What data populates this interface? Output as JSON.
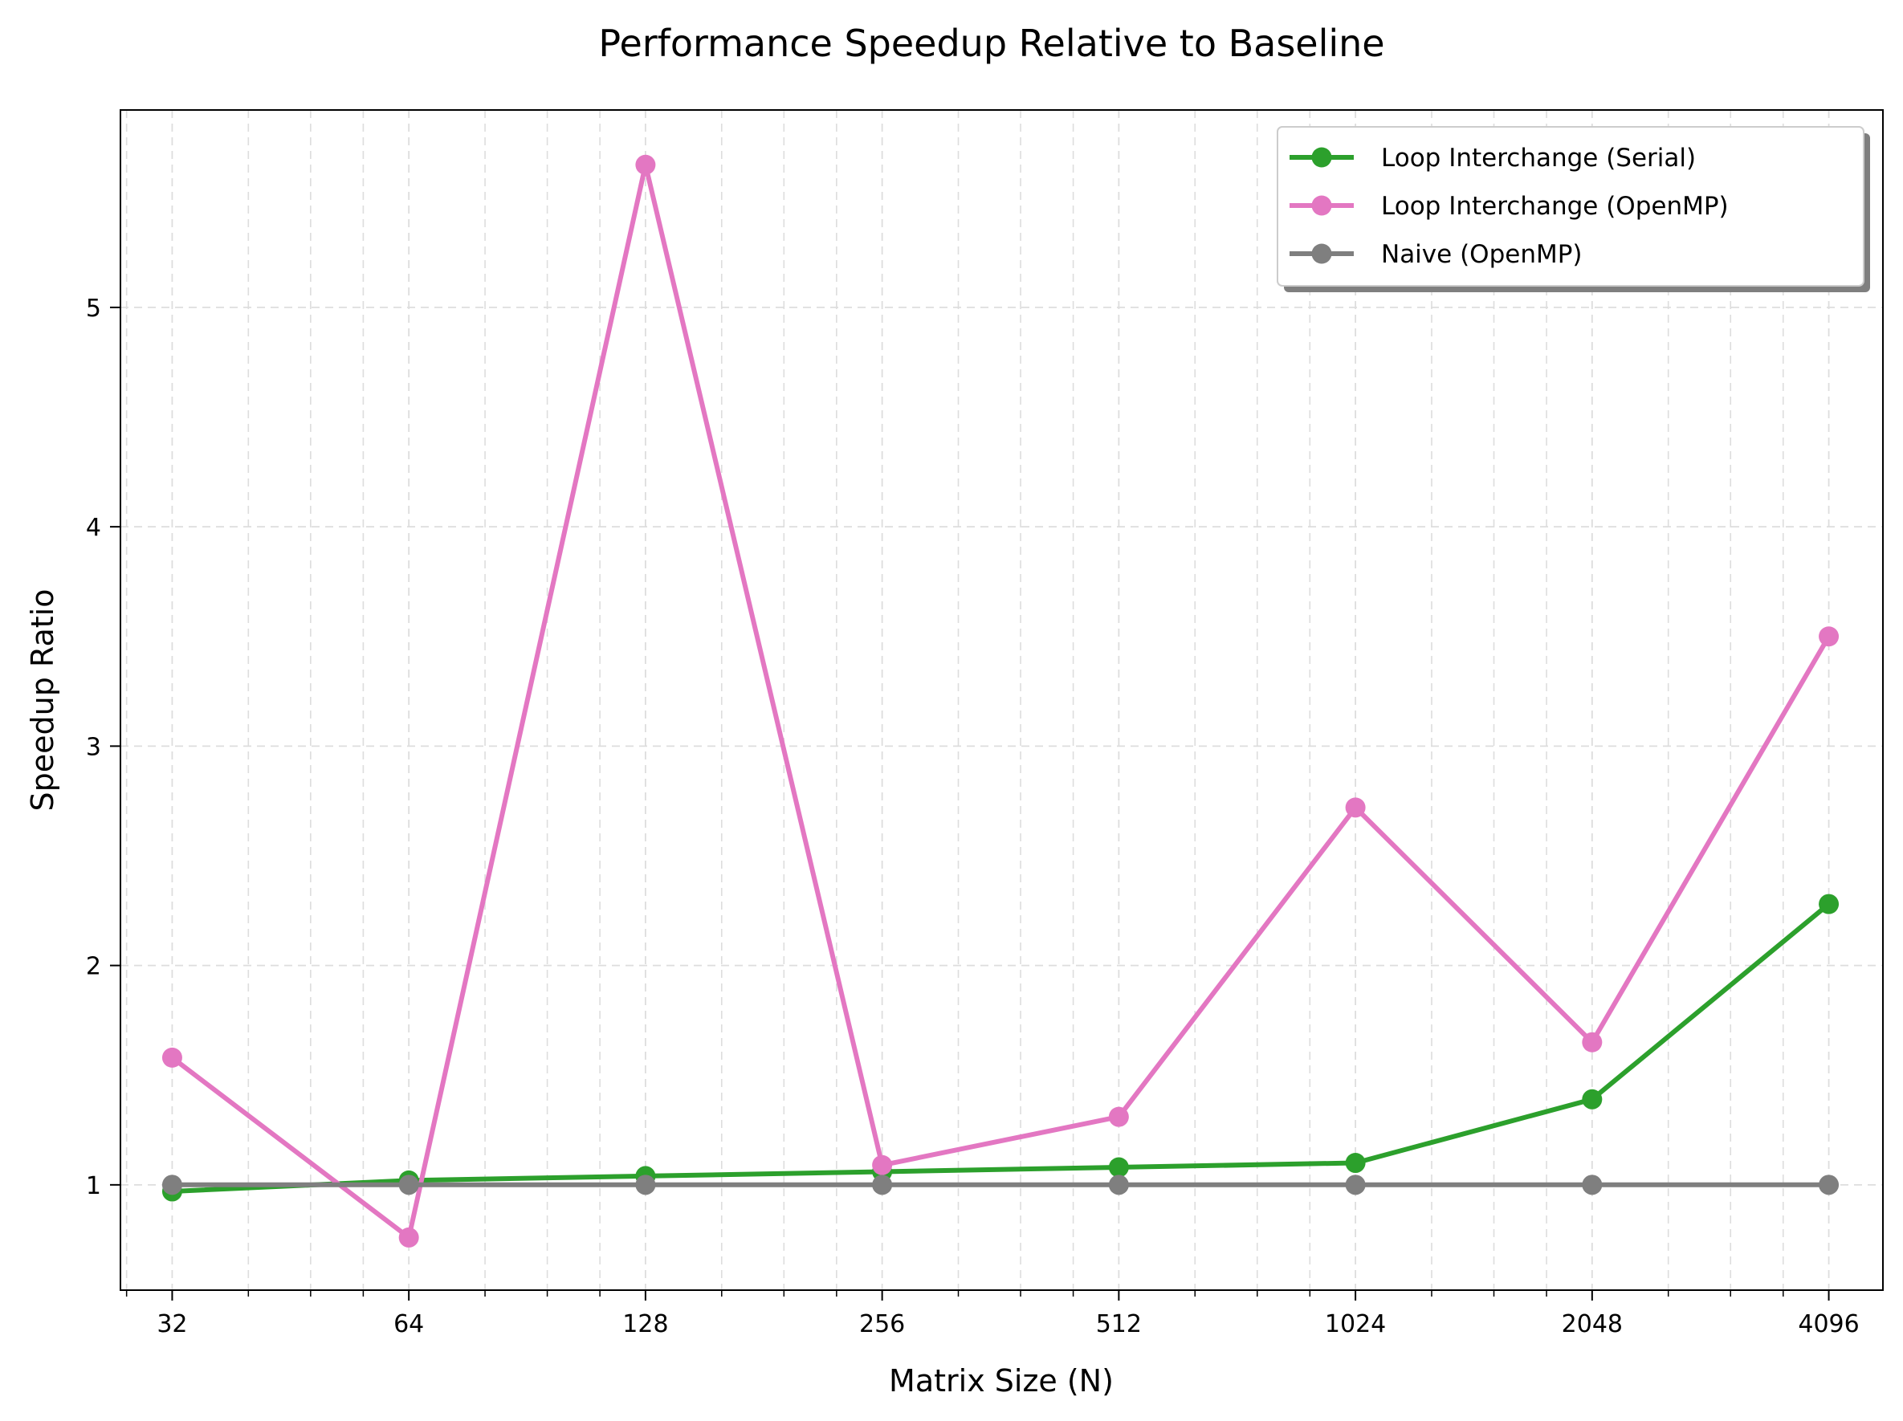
{
  "chart_data": {
    "type": "line",
    "title": "Performance Speedup Relative to Baseline",
    "xlabel": "Matrix Size (N)",
    "ylabel": "Speedup Ratio",
    "x_scale": "log2",
    "x": [
      32,
      64,
      128,
      256,
      512,
      1024,
      2048,
      4096
    ],
    "x_tick_labels": [
      "32",
      "64",
      "128",
      "256",
      "512",
      "1024",
      "2048",
      "4096"
    ],
    "xlim": [
      27.5,
      4800
    ],
    "ylim": [
      0.52,
      5.9
    ],
    "y_ticks": [
      1,
      2,
      3,
      4,
      5
    ],
    "y_tick_labels": [
      "1",
      "2",
      "3",
      "4",
      "5"
    ],
    "grid": true,
    "legend_position": "upper right",
    "series": [
      {
        "name": "Loop Interchange (Serial)",
        "color": "#2ca02c",
        "values": [
          0.97,
          1.02,
          1.04,
          1.06,
          1.08,
          1.1,
          1.39,
          2.28
        ]
      },
      {
        "name": "Loop Interchange (OpenMP)",
        "color": "#e377c2",
        "values": [
          1.58,
          0.76,
          5.65,
          1.09,
          1.31,
          2.72,
          1.65,
          3.5
        ]
      },
      {
        "name": "Naive (OpenMP)",
        "color": "#7f7f7f",
        "values": [
          1.0,
          1.0,
          1.0,
          1.0,
          1.0,
          1.0,
          1.0,
          1.0
        ]
      }
    ]
  }
}
